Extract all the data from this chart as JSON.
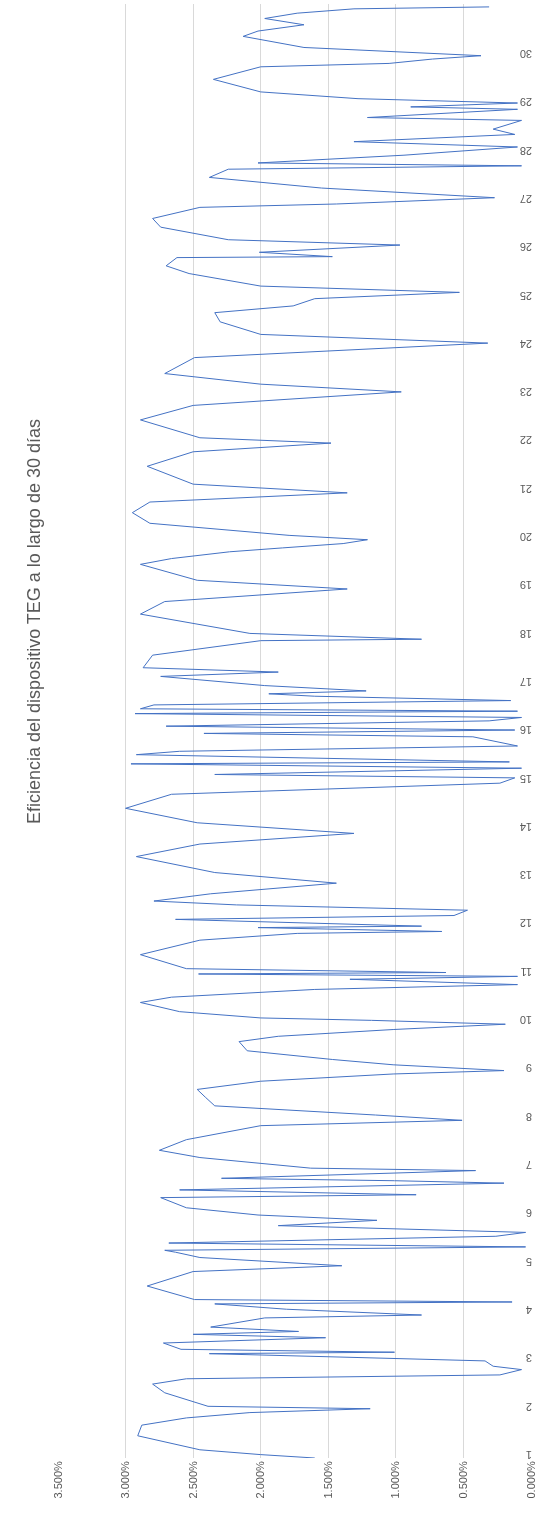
{
  "chart_data": {
    "type": "line",
    "title": "Eficiencia del dispositivo TEG a lo largo de 30 días",
    "color": "#4472c4",
    "grid": "x",
    "orientation": "horizontal",
    "ylim": [
      1,
      31.1
    ],
    "yticks": [
      1,
      2,
      3,
      4,
      5,
      6,
      7,
      8,
      9,
      10,
      11,
      12,
      13,
      14,
      15,
      16,
      17,
      18,
      19,
      20,
      21,
      22,
      23,
      24,
      25,
      26,
      27,
      28,
      29,
      30
    ],
    "xlim": [
      3.5,
      0
    ],
    "xticks": [
      {
        "value": 0,
        "label": "0.000%"
      },
      {
        "value": 0.5,
        "label": "0.500%"
      },
      {
        "value": 1,
        "label": "1.000%"
      },
      {
        "value": 1.5,
        "label": "1.500%"
      },
      {
        "value": 2,
        "label": "2.000%"
      },
      {
        "value": 2.5,
        "label": "2.500%"
      },
      {
        "value": 3,
        "label": "3.000%"
      },
      {
        "value": 3.5,
        "label": "3.500%"
      }
    ],
    "x": [
      1.0,
      1.07,
      1.17,
      1.46,
      1.68,
      1.83,
      1.94,
      2.02,
      2.07,
      2.35,
      2.53,
      2.64,
      2.72,
      2.83,
      2.9,
      3.01,
      3.08,
      3.16,
      3.19,
      3.25,
      3.38,
      3.49,
      3.56,
      3.62,
      3.71,
      3.9,
      3.96,
      4.08,
      4.19,
      4.23,
      4.28,
      4.56,
      4.86,
      4.98,
      5.15,
      5.26,
      5.3,
      5.37,
      5.45,
      5.59,
      5.67,
      5.81,
      5.92,
      6.03,
      6.18,
      6.39,
      6.45,
      6.55,
      6.69,
      6.74,
      6.79,
      6.95,
      7.0,
      7.22,
      7.37,
      7.59,
      7.88,
      7.99,
      8.1,
      8.29,
      8.47,
      8.63,
      8.8,
      8.95,
      9.02,
      9.14,
      9.25,
      9.43,
      9.62,
      9.73,
      9.87,
      9.98,
      10.06,
      10.11,
      10.24,
      10.43,
      10.54,
      10.7,
      10.8,
      10.91,
      10.97,
      11.02,
      11.05,
      11.13,
      11.42,
      11.72,
      11.86,
      11.9,
      11.98,
      12.01,
      12.15,
      12.23,
      12.34,
      12.45,
      12.53,
      12.68,
      12.9,
      13.12,
      13.45,
      13.71,
      13.93,
      14.15,
      14.45,
      14.74,
      14.97,
      15.08,
      15.15,
      15.28,
      15.37,
      15.41,
      15.56,
      15.63,
      15.74,
      15.93,
      16.0,
      16.07,
      16.15,
      16.26,
      16.33,
      16.41,
      16.46,
      16.51,
      16.59,
      16.68,
      16.77,
      16.82,
      16.88,
      16.99,
      17.18,
      17.27,
      17.36,
      17.62,
      17.92,
      17.95,
      18.07,
      18.47,
      18.73,
      18.99,
      19.17,
      19.5,
      19.62,
      19.76,
      19.84,
      19.93,
      20.01,
      20.1,
      20.35,
      20.57,
      20.79,
      20.98,
      21.16,
      21.53,
      21.83,
      22.01,
      22.12,
      22.49,
      22.79,
      23.07,
      23.23,
      23.45,
      23.78,
      24.08,
      24.26,
      24.52,
      24.71,
      24.85,
      25.0,
      25.13,
      25.26,
      25.52,
      25.68,
      25.85,
      25.87,
      25.96,
      26.11,
      26.22,
      26.48,
      26.66,
      26.89,
      26.96,
      27.09,
      27.29,
      27.51,
      27.68,
      27.75,
      27.81,
      27.97,
      28.14,
      28.25,
      28.4,
      28.51,
      28.69,
      28.75,
      28.92,
      28.97,
      29.05,
      29.14,
      29.28,
      29.54,
      29.8,
      29.87,
      29.96,
      30.03,
      30.2,
      30.43,
      30.54,
      30.67,
      30.8,
      30.91,
      31.0,
      31.04
    ],
    "values": [
      1.6,
      2.0,
      2.45,
      2.91,
      2.88,
      2.55,
      2.08,
      1.19,
      2.39,
      2.71,
      2.8,
      2.55,
      0.23,
      0.07,
      0.28,
      0.34,
      1.28,
      2.38,
      1.01,
      2.59,
      2.72,
      1.52,
      2.5,
      1.72,
      2.37,
      1.97,
      0.81,
      1.81,
      2.34,
      0.14,
      2.49,
      2.84,
      2.5,
      1.4,
      2.45,
      2.63,
      2.71,
      0.04,
      2.68,
      0.26,
      0.04,
      1.87,
      1.14,
      2.02,
      2.55,
      2.74,
      0.85,
      2.6,
      0.2,
      1.01,
      2.29,
      0.41,
      1.63,
      2.45,
      2.75,
      2.55,
      2.0,
      0.51,
      1.15,
      2.34,
      2.41,
      2.47,
      2.0,
      1.02,
      0.2,
      1.02,
      1.47,
      2.1,
      2.16,
      1.87,
      1.02,
      0.19,
      1.18,
      2.0,
      2.6,
      2.89,
      2.66,
      1.6,
      0.1,
      1.34,
      0.1,
      2.46,
      0.63,
      2.55,
      2.89,
      2.45,
      1.73,
      0.66,
      2.02,
      0.81,
      2.63,
      0.57,
      0.47,
      2.18,
      2.79,
      2.37,
      1.44,
      2.34,
      2.92,
      2.45,
      1.31,
      2.47,
      3.0,
      2.66,
      0.23,
      0.12,
      2.34,
      0.07,
      2.96,
      0.16,
      2.92,
      2.6,
      0.1,
      0.43,
      2.42,
      0.12,
      2.7,
      0.31,
      0.07,
      2.93,
      0.1,
      2.89,
      2.79,
      0.15,
      1.6,
      1.94,
      1.22,
      1.97,
      2.74,
      1.87,
      2.87,
      2.8,
      2.0,
      0.81,
      2.08,
      2.89,
      2.71,
      1.36,
      2.47,
      2.89,
      2.66,
      2.23,
      1.84,
      1.39,
      1.21,
      1.79,
      2.82,
      2.95,
      2.82,
      1.36,
      2.5,
      2.84,
      2.5,
      1.48,
      2.45,
      2.89,
      2.5,
      0.96,
      2.0,
      2.71,
      2.49,
      0.32,
      2.0,
      2.3,
      2.34,
      1.76,
      1.6,
      0.53,
      2.0,
      2.53,
      2.7,
      2.62,
      1.47,
      2.01,
      0.97,
      2.24,
      2.74,
      2.8,
      2.45,
      1.44,
      0.27,
      1.55,
      2.38,
      2.24,
      0.07,
      2.02,
      0.94,
      0.1,
      1.31,
      0.12,
      0.28,
      0.07,
      1.21,
      0.1,
      0.89,
      0.1,
      1.28,
      2.0,
      2.35,
      2.0,
      1.05,
      0.73,
      0.37,
      1.68,
      2.13,
      2.02,
      1.68,
      1.97,
      1.73,
      1.31,
      0.31
    ]
  }
}
